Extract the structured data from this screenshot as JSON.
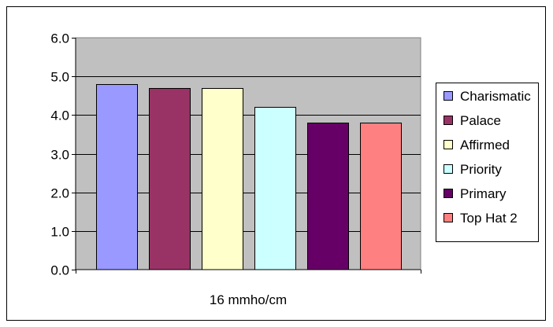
{
  "chart_data": {
    "type": "bar",
    "categories": [
      "16 mmho/cm"
    ],
    "series": [
      {
        "name": "Charismatic",
        "values": [
          4.8
        ],
        "color": "#9999FF"
      },
      {
        "name": "Palace",
        "values": [
          4.7
        ],
        "color": "#993366"
      },
      {
        "name": "Affirmed",
        "values": [
          4.7
        ],
        "color": "#FFFFCC"
      },
      {
        "name": "Priority",
        "values": [
          4.2
        ],
        "color": "#CCFFFF"
      },
      {
        "name": "Primary",
        "values": [
          3.8
        ],
        "color": "#660066"
      },
      {
        "name": "Top Hat 2",
        "values": [
          3.8
        ],
        "color": "#FF8080"
      }
    ],
    "yticks": [
      "0.0",
      "1.0",
      "2.0",
      "3.0",
      "4.0",
      "5.0",
      "6.0"
    ],
    "ylim": [
      0,
      6
    ],
    "grid": true,
    "plot_background": "#C0C0C0",
    "legend_position": "right",
    "title": "",
    "xlabel": "",
    "ylabel": ""
  }
}
